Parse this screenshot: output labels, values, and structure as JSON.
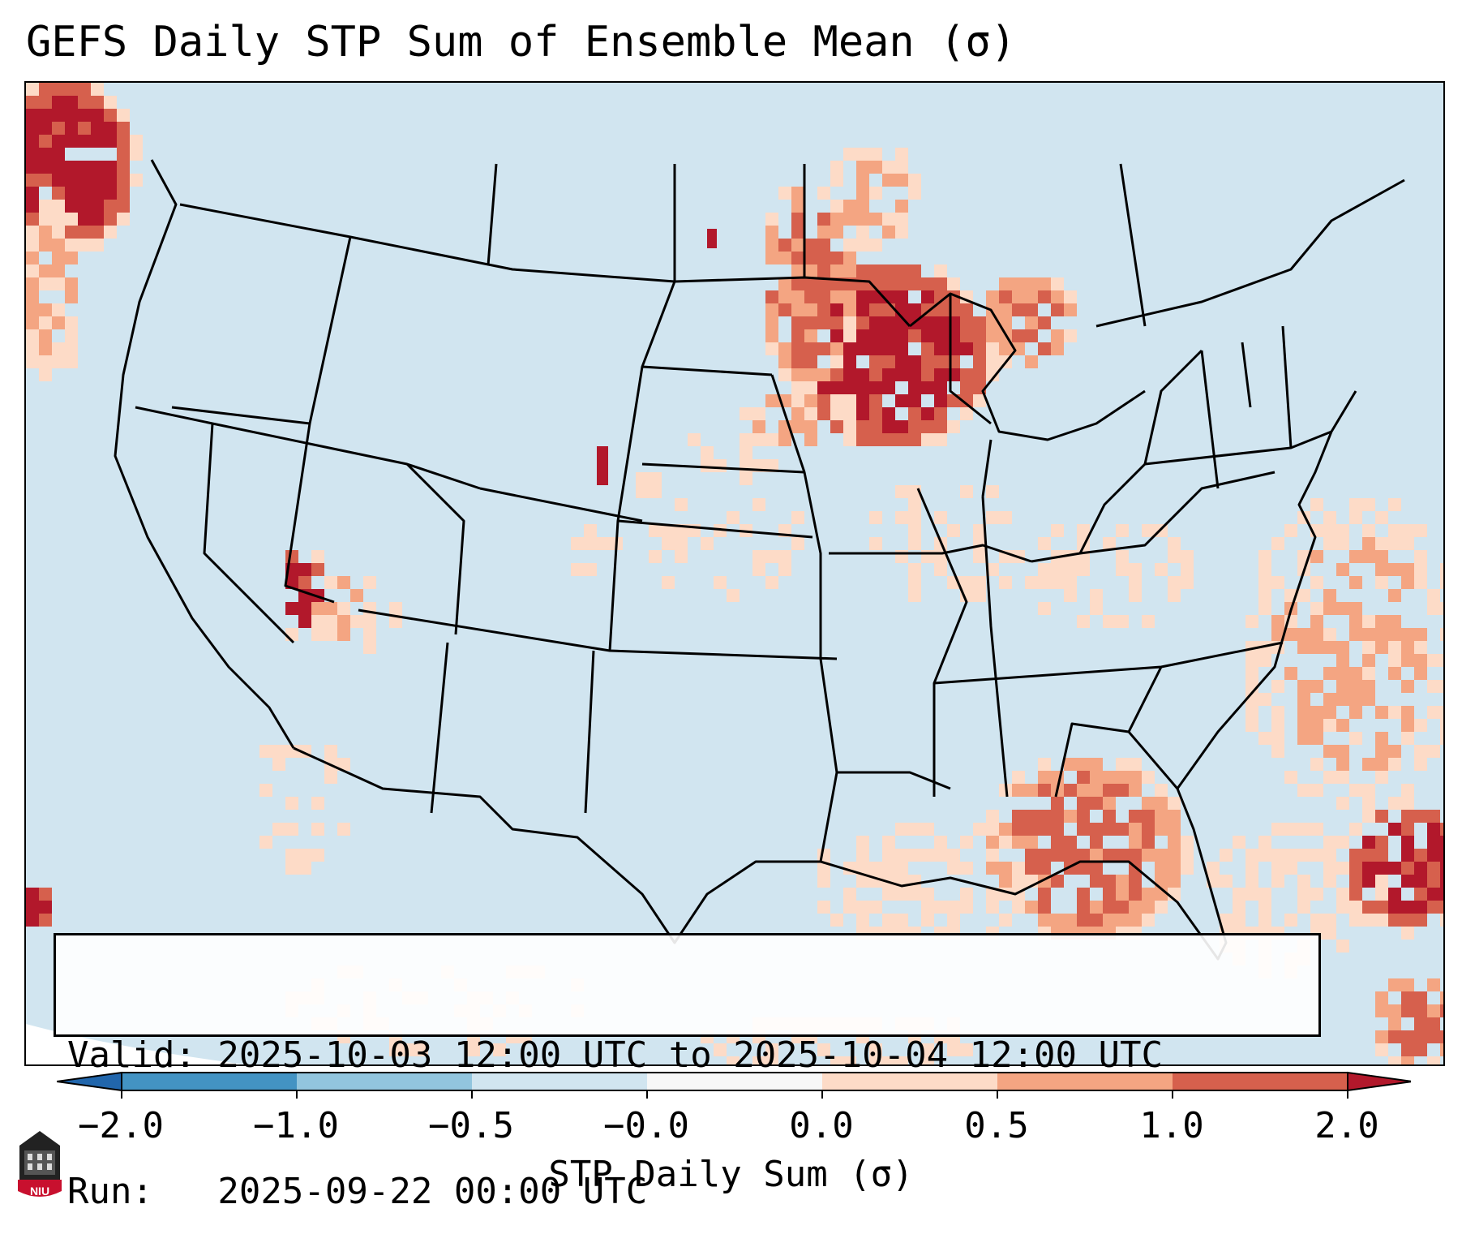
{
  "title": "GEFS Daily STP Sum of Ensemble Mean (σ)",
  "info": {
    "valid_line": "Valid: 2025-10-03 12:00 UTC to 2025-10-04 12:00 UTC",
    "run_line": "Run:   2025-09-22 00:00 UTC"
  },
  "colorbar": {
    "label": "STP Daily Sum (σ)",
    "ticks": [
      "−2.0",
      "−1.0",
      "−0.5",
      "−0.0",
      "0.0",
      "0.5",
      "1.0",
      "2.0"
    ],
    "colors": [
      "#4393c3",
      "#92c5de",
      "#d1e5f0",
      "#f7f7f7",
      "#fddbc7",
      "#f4a582",
      "#d6604d",
      "#b2182b"
    ],
    "under_color": "#2166ac",
    "over_color": "#b2182b"
  },
  "map": {
    "background_color": "#d1e5f0",
    "anomaly_regions": [
      {
        "name": "Upper Midwest / Wisconsin",
        "level": 3
      },
      {
        "name": "Michigan Lower Peninsula",
        "level": 2
      },
      {
        "name": "Gulf of Mexico (eastern)",
        "level": 2
      },
      {
        "name": "Western Atlantic",
        "level": 2
      },
      {
        "name": "Pacific Northwest coast",
        "level": 3
      },
      {
        "name": "Southern Nevada / Arizona",
        "level": 3
      },
      {
        "name": "Eastern Colorado",
        "level": 3
      }
    ]
  },
  "logo": {
    "text": "NIU"
  }
}
